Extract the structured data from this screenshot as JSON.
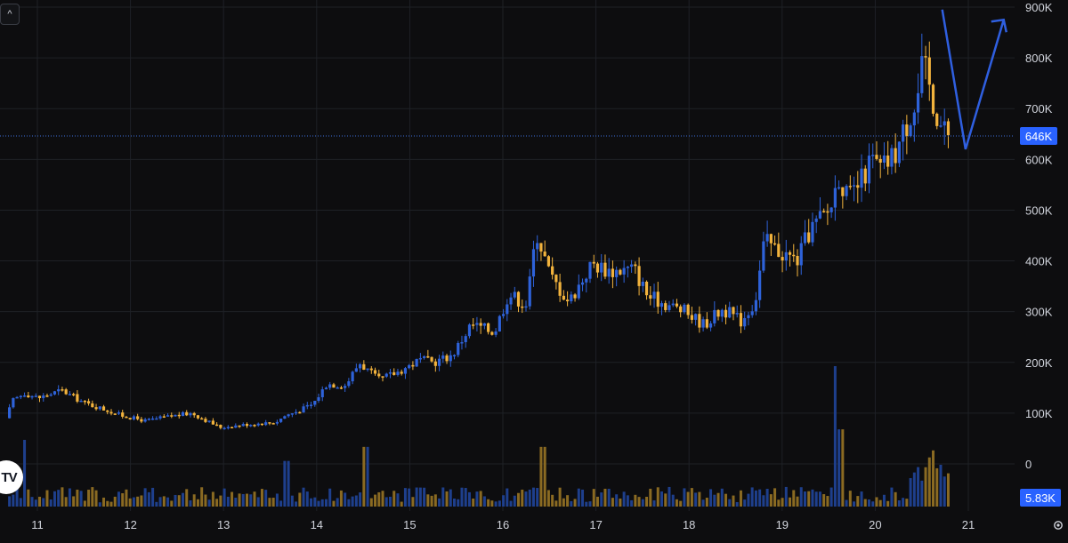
{
  "ui": {
    "collapse_glyph": "^",
    "logo_text": "TV",
    "settings_icon": "gear-icon"
  },
  "colors": {
    "background": "#0d0d0f",
    "grid": "#1e2126",
    "up": "#2e62d9",
    "down": "#f2b33d",
    "up_volume": "#1e3f8c",
    "down_volume": "#8a6a22",
    "price_line": "#3d6fd8",
    "price_label_bg": "#2962ff",
    "annotation": "#2f5fe0",
    "axis_text": "#d1d4dc"
  },
  "chart_data": {
    "type": "candlestick",
    "title": "",
    "xlabel": "",
    "ylabel": "",
    "x_ticks": [
      "11",
      "12",
      "13",
      "14",
      "15",
      "16",
      "17",
      "18",
      "19",
      "20",
      "21"
    ],
    "x_range": [
      10.7,
      21.0
    ],
    "y_ticks": [
      "900K",
      "800K",
      "700K",
      "600K",
      "500K",
      "400K",
      "300K",
      "200K",
      "100K",
      "0"
    ],
    "y_tick_values": [
      900000,
      800000,
      700000,
      600000,
      500000,
      400000,
      300000,
      200000,
      100000,
      0
    ],
    "y_range": [
      -80000,
      915000
    ],
    "grid": true,
    "last_price": 646000,
    "last_price_label": "646K",
    "volume_label": "5.83K",
    "price_anchors": [
      [
        10.7,
        90000
      ],
      [
        10.78,
        125000
      ],
      [
        10.9,
        140000
      ],
      [
        11.05,
        130000
      ],
      [
        11.3,
        145000
      ],
      [
        11.55,
        120000
      ],
      [
        11.8,
        105000
      ],
      [
        11.95,
        95000
      ],
      [
        12.2,
        85000
      ],
      [
        12.5,
        95000
      ],
      [
        12.7,
        100000
      ],
      [
        13.0,
        72000
      ],
      [
        13.3,
        78000
      ],
      [
        13.6,
        82000
      ],
      [
        13.7,
        95000
      ],
      [
        13.85,
        105000
      ],
      [
        14.0,
        118000
      ],
      [
        14.15,
        158000
      ],
      [
        14.35,
        155000
      ],
      [
        14.5,
        200000
      ],
      [
        14.7,
        165000
      ],
      [
        14.9,
        180000
      ],
      [
        15.15,
        205000
      ],
      [
        15.3,
        200000
      ],
      [
        15.5,
        215000
      ],
      [
        15.7,
        275000
      ],
      [
        15.95,
        260000
      ],
      [
        16.1,
        335000
      ],
      [
        16.3,
        315000
      ],
      [
        16.4,
        460000
      ],
      [
        16.55,
        370000
      ],
      [
        16.75,
        320000
      ],
      [
        17.0,
        395000
      ],
      [
        17.2,
        380000
      ],
      [
        17.45,
        385000
      ],
      [
        17.6,
        330000
      ],
      [
        17.8,
        315000
      ],
      [
        18.0,
        300000
      ],
      [
        18.2,
        275000
      ],
      [
        18.4,
        305000
      ],
      [
        18.6,
        282000
      ],
      [
        18.75,
        320000
      ],
      [
        18.85,
        440000
      ],
      [
        19.0,
        420000
      ],
      [
        19.2,
        400000
      ],
      [
        19.35,
        465000
      ],
      [
        19.55,
        500000
      ],
      [
        19.65,
        570000
      ],
      [
        19.75,
        520000
      ],
      [
        19.9,
        560000
      ],
      [
        20.0,
        600000
      ],
      [
        20.1,
        580000
      ],
      [
        20.25,
        610000
      ],
      [
        20.4,
        680000
      ],
      [
        20.55,
        790000
      ],
      [
        20.65,
        730000
      ],
      [
        20.72,
        680000
      ],
      [
        20.8,
        646000
      ]
    ],
    "volume_spikes": [
      {
        "x": 10.85,
        "volume": 9.5
      },
      {
        "x": 13.68,
        "volume": 6.5
      },
      {
        "x": 14.53,
        "volume": 8.5
      },
      {
        "x": 16.43,
        "volume": 8.5
      },
      {
        "x": 19.59,
        "volume": 20
      },
      {
        "x": 19.63,
        "volume": 11
      },
      {
        "x": 20.63,
        "volume": 8.0
      },
      {
        "x": 20.58,
        "volume": 7.0
      }
    ],
    "annotation_arrow": {
      "description": "projection",
      "points": [
        [
          20.72,
          895000
        ],
        [
          20.97,
          620000
        ],
        [
          21.38,
          875000
        ]
      ]
    }
  }
}
